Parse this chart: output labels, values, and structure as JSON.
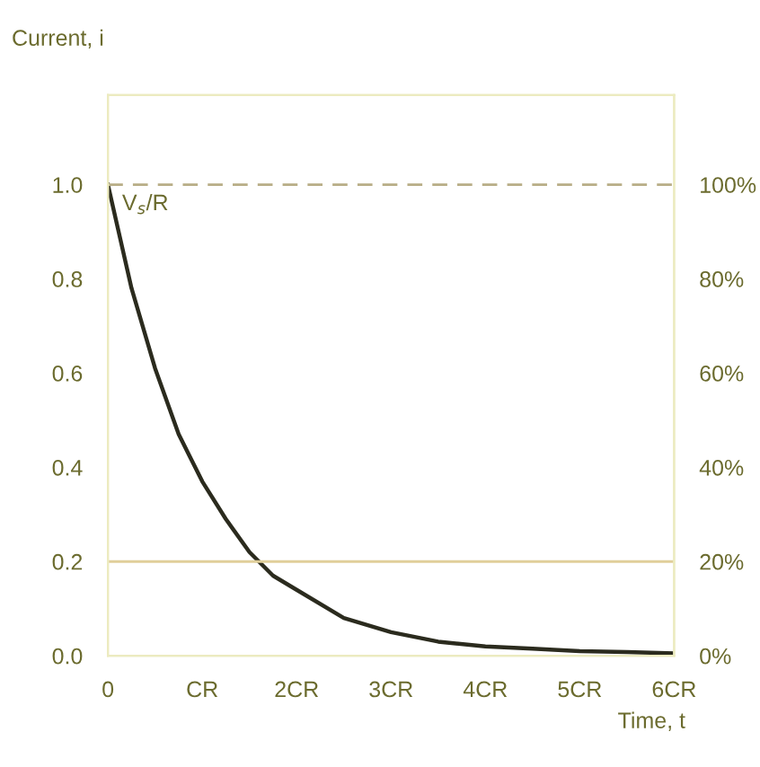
{
  "chart_data": {
    "type": "line",
    "ylabel": "Current, i",
    "xlabel": "Time, t",
    "x": [
      0,
      0.25,
      0.5,
      0.75,
      1,
      1.25,
      1.5,
      1.75,
      2,
      2.5,
      3,
      3.5,
      4,
      4.5,
      5,
      5.5,
      6
    ],
    "series": [
      {
        "color": "#2b2b1e",
        "values": [
          1.0,
          0.78,
          0.61,
          0.47,
          0.37,
          0.29,
          0.22,
          0.17,
          0.14,
          0.08,
          0.05,
          0.03,
          0.02,
          0.015,
          0.01,
          0.008,
          0.005
        ]
      }
    ],
    "xlim": [
      0,
      6
    ],
    "xticks": [
      {
        "value": 0,
        "label": "0"
      },
      {
        "value": 1,
        "label": "CR"
      },
      {
        "value": 2,
        "label": "2CR"
      },
      {
        "value": 3,
        "label": "3CR"
      },
      {
        "value": 4,
        "label": "4CR"
      },
      {
        "value": 5,
        "label": "5CR"
      },
      {
        "value": 6,
        "label": "6CR"
      }
    ],
    "ylim": [
      0,
      1.19
    ],
    "yticks": [
      {
        "value": 0,
        "label": "0.0"
      },
      {
        "value": 0.2,
        "label": "0.2"
      },
      {
        "value": 0.4,
        "label": "0.4"
      },
      {
        "value": 0.6,
        "label": "0.6"
      },
      {
        "value": 0.8,
        "label": "0.8"
      },
      {
        "value": 1.0,
        "label": "1.0"
      }
    ],
    "y2lim": [
      0,
      119
    ],
    "y2ticks": [
      {
        "value": 0,
        "label": "0%"
      },
      {
        "value": 20,
        "label": "20%"
      },
      {
        "value": 40,
        "label": "40%"
      },
      {
        "value": 60,
        "label": "60%"
      },
      {
        "value": 80,
        "label": "80%"
      },
      {
        "value": 100,
        "label": "100%"
      }
    ],
    "ref_lines": [
      {
        "axis": "y",
        "value": 1.0,
        "label": "V$_{s}$/R",
        "color": "#b8ad86",
        "line_style": "dashed"
      },
      {
        "axis": "y",
        "value": 0.2,
        "color": "#e0cf9a",
        "line_style": "solid"
      }
    ],
    "grid": false,
    "legend": false,
    "marker": "none",
    "line_style": "solid"
  }
}
